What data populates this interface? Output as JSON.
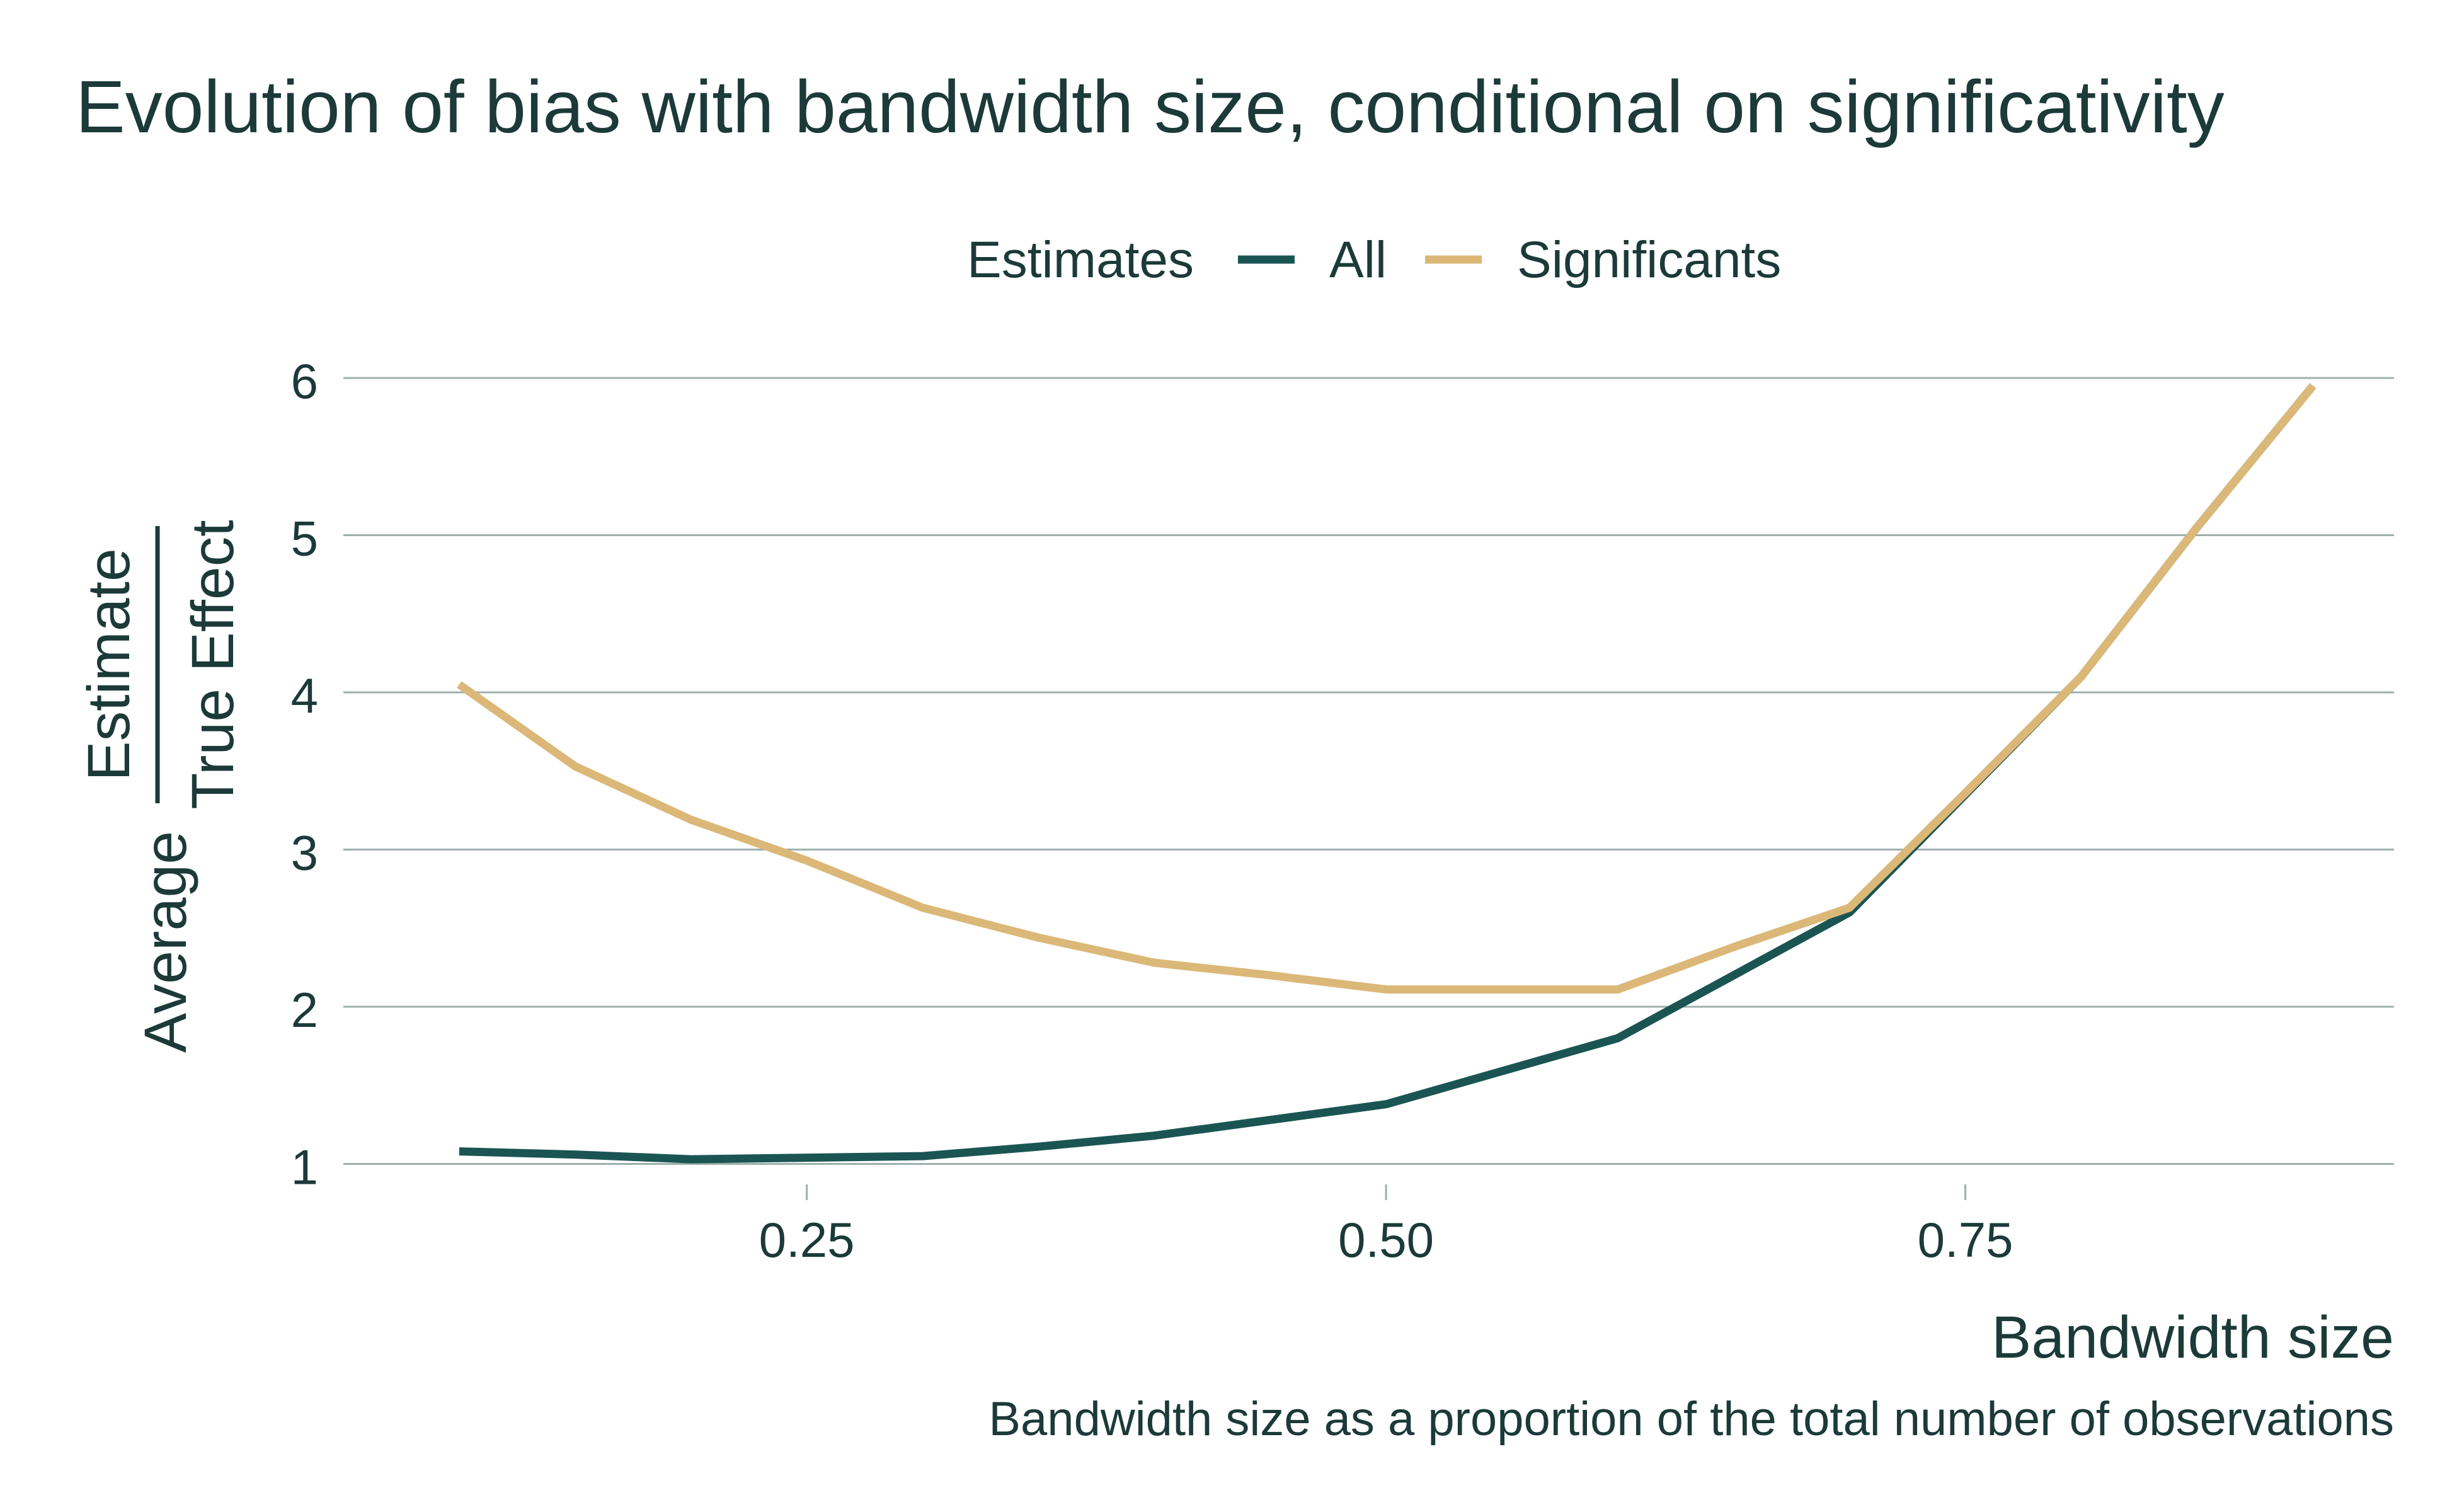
{
  "chart_data": {
    "type": "line",
    "title": "Evolution of bias with bandwidth size, conditional on significativity",
    "legend": {
      "title": "Estimates",
      "placement": "top-center"
    },
    "xlabel": "Bandwidth size",
    "caption": "Bandwidth size as a proportion of the total number of observations",
    "ylabel": {
      "prefix": "Average",
      "numerator": "Estimate",
      "denominator": "True Effect"
    },
    "xlim": [
      0.05,
      0.935
    ],
    "ylim": [
      0.87,
      6.1
    ],
    "xticks": [
      0.25,
      0.5,
      0.75
    ],
    "xtick_labels": [
      "0.25",
      "0.50",
      "0.75"
    ],
    "yticks": [
      1,
      2,
      3,
      4,
      5,
      6
    ],
    "ytick_labels": [
      "1",
      "2",
      "3",
      "4",
      "5",
      "6"
    ],
    "grid": "horizontal",
    "series": [
      {
        "name": "All",
        "color": "#1b5553",
        "x": [
          0.1,
          0.15,
          0.2,
          0.25,
          0.3,
          0.35,
          0.4,
          0.45,
          0.5,
          0.55,
          0.6,
          0.65,
          0.7,
          0.75,
          0.8,
          0.85,
          0.9
        ],
        "y": [
          1.08,
          1.06,
          1.03,
          1.04,
          1.05,
          1.11,
          1.18,
          1.28,
          1.38,
          1.59,
          1.8,
          2.2,
          2.6,
          3.35,
          4.1,
          5.05,
          5.95
        ]
      },
      {
        "name": "Significants",
        "color": "#dbb878",
        "x": [
          0.1,
          0.15,
          0.2,
          0.25,
          0.3,
          0.35,
          0.4,
          0.45,
          0.5,
          0.55,
          0.6,
          0.65,
          0.7,
          0.75,
          0.8,
          0.85,
          0.9
        ],
        "y": [
          4.05,
          3.53,
          3.19,
          2.93,
          2.63,
          2.44,
          2.28,
          2.2,
          2.11,
          2.11,
          2.11,
          2.38,
          2.63,
          3.36,
          4.1,
          5.05,
          5.95
        ]
      }
    ]
  }
}
